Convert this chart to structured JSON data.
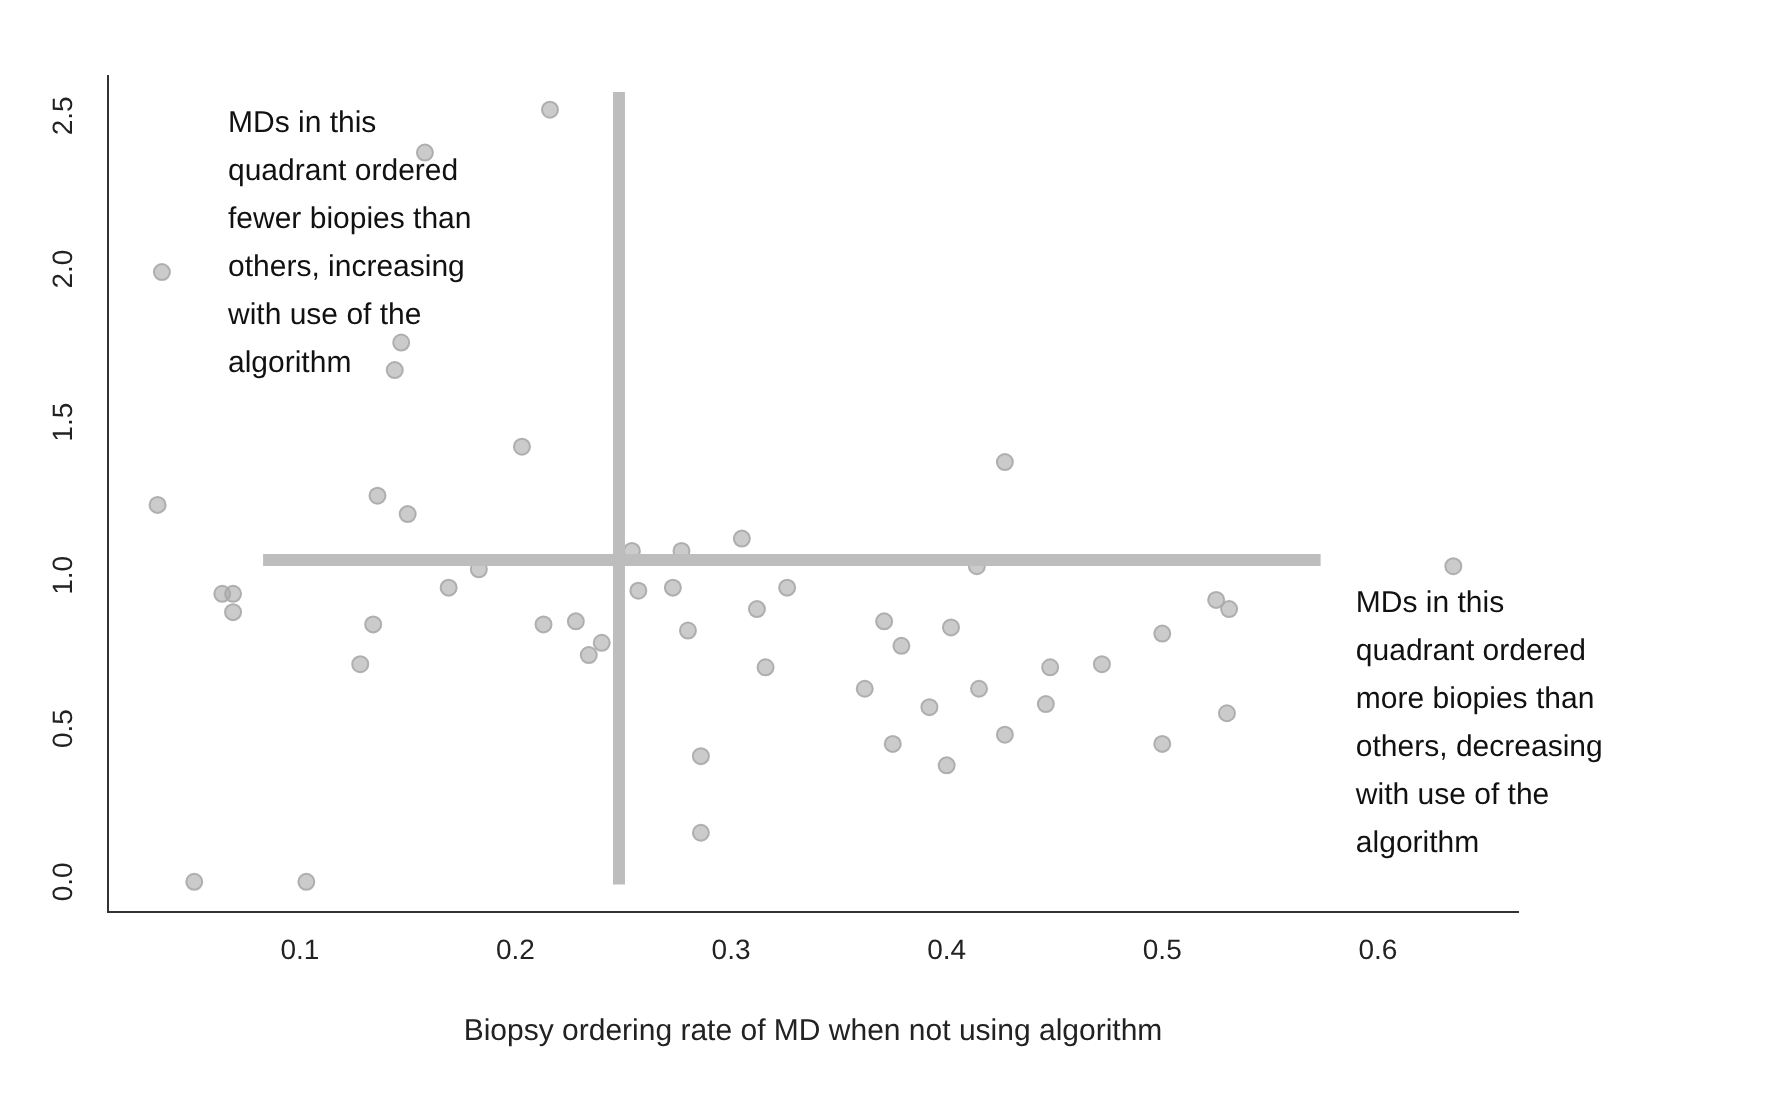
{
  "chart_data": {
    "type": "scatter",
    "xlabel": "Biopsy ordering rate of MD when not using algorithm",
    "annotations": [
      "MDs in this quadrant ordered fewer biopies than others, increasing with use of the algorithm",
      "MDs in this quadrant ordered more biopies than others, decreasing with use of the algorithm"
    ],
    "x": [
      0.216,
      0.158,
      0.036,
      0.147,
      0.144,
      0.203,
      0.034,
      0.136,
      0.15,
      0.183,
      0.169,
      0.064,
      0.069,
      0.069,
      0.134,
      0.128,
      0.051,
      0.103,
      0.213,
      0.228,
      0.234,
      0.24,
      0.254,
      0.257,
      0.273,
      0.277,
      0.28,
      0.286,
      0.286,
      0.305,
      0.312,
      0.316,
      0.326,
      0.362,
      0.371,
      0.375,
      0.379,
      0.392,
      0.4,
      0.402,
      0.414,
      0.415,
      0.427,
      0.427,
      0.446,
      0.448,
      0.472,
      0.5,
      0.5,
      0.525,
      0.531,
      0.53,
      0.635
    ],
    "series": [
      {
        "color": "#a9a9a9",
        "values": [
          2.52,
          2.38,
          1.99,
          1.76,
          1.67,
          1.42,
          1.23,
          1.26,
          1.2,
          1.02,
          0.96,
          0.94,
          0.94,
          0.88,
          0.84,
          0.71,
          0.0,
          0.0,
          0.84,
          0.85,
          0.74,
          0.78,
          1.08,
          0.95,
          0.96,
          1.08,
          0.82,
          0.41,
          0.16,
          1.12,
          0.89,
          0.7,
          0.96,
          0.63,
          0.85,
          0.45,
          0.77,
          0.57,
          0.38,
          0.83,
          1.03,
          0.63,
          1.37,
          0.48,
          0.58,
          0.7,
          0.71,
          0.81,
          0.45,
          0.92,
          0.89,
          0.55,
          1.03
        ]
      }
    ],
    "xlim": [
      0.011,
      0.665
    ],
    "ylim": [
      -0.1,
      2.63
    ],
    "xticks": [
      0.1,
      0.2,
      0.3,
      0.4,
      0.5,
      0.6
    ],
    "yticks": [
      {
        "value": 0,
        "label": "0.0"
      },
      {
        "value": 0.5,
        "label": "0.5"
      },
      {
        "value": 1,
        "label": "1.0"
      },
      {
        "value": 1.5,
        "label": "1.5"
      },
      {
        "value": 2,
        "label": "2.0"
      },
      {
        "value": 2.5,
        "label": "2.5"
      }
    ],
    "ref_lines": [
      {
        "axis": "x",
        "value": 0.248,
        "color": "#bdbdbd"
      },
      {
        "axis": "y",
        "value": 1.05,
        "color": "#bdbdbd"
      }
    ],
    "grid": false,
    "legend": false,
    "marker": "circle"
  }
}
